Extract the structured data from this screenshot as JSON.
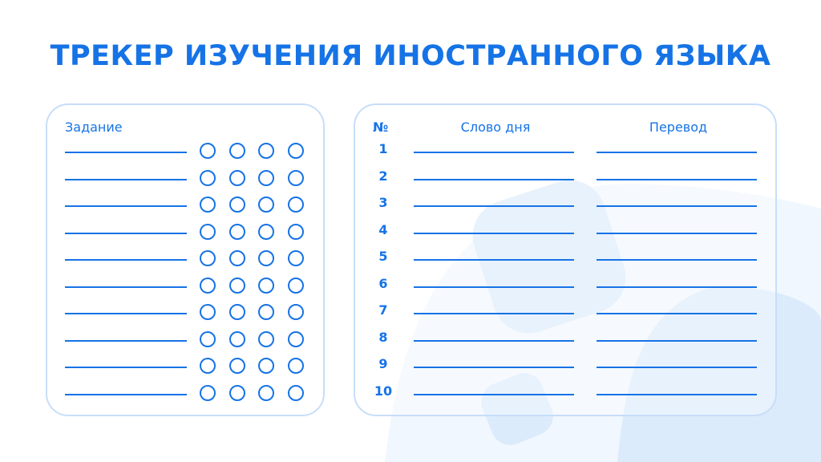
{
  "title": "ТРЕКЕР ИЗУЧЕНИЯ ИНОСТРАННОГО ЯЗЫКА",
  "tasks": {
    "header": "Задание",
    "rows": 10,
    "circles_per_row": 4
  },
  "words": {
    "header_number": "№",
    "header_word": "Слово дня",
    "header_translation": "Перевод",
    "numbers": [
      "1",
      "2",
      "3",
      "4",
      "5",
      "6",
      "7",
      "8",
      "9",
      "10"
    ]
  },
  "colors": {
    "accent": "#1673e6",
    "border": "#c7defa",
    "decor": "#dcebfb"
  }
}
